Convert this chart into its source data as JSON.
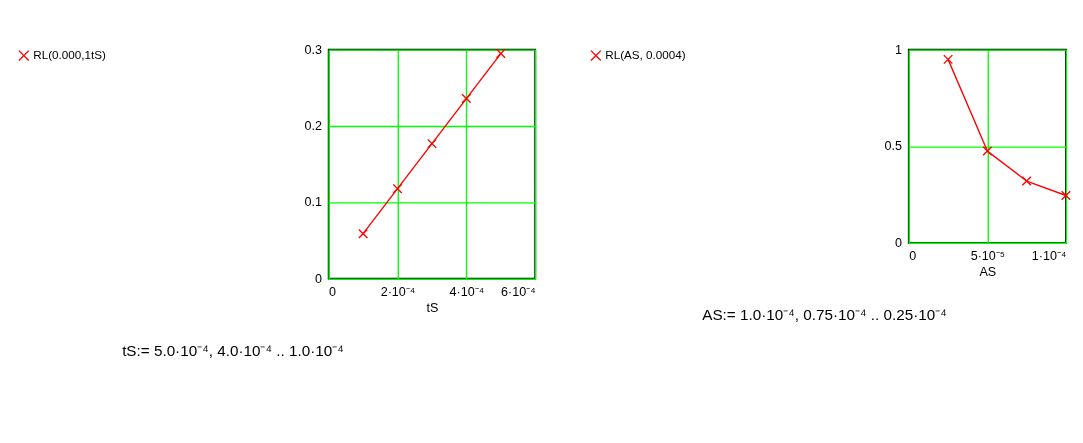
{
  "chart_data": [
    {
      "type": "line",
      "xlabel": "tS",
      "x": [
        0.0001,
        0.0002,
        0.0003,
        0.0004,
        0.0005
      ],
      "series": [
        {
          "name": "RL(0.000,1tS)",
          "color": "#ff0000",
          "values": [
            0.059,
            0.118,
            0.177,
            0.236,
            0.295
          ]
        }
      ],
      "xlim": [
        0,
        0.0006
      ],
      "xticks": [
        0,
        {
          "value": 0.0002,
          "label": "2·10⁻⁴"
        },
        {
          "value": 0.0004,
          "label": "4·10⁻⁴"
        },
        {
          "value": 0.0006,
          "label": "6·10⁻⁴"
        }
      ],
      "ylim": [
        0,
        0.3
      ],
      "yticks": [
        0,
        0.1,
        0.2,
        0.3
      ],
      "grid": true,
      "legend": "left",
      "marker": "cross",
      "line_style": "solid",
      "annotations": [
        "tS:= 5.0·10⁻⁴, 4.0·10⁻⁴ .. 1.0·10⁻⁴"
      ]
    },
    {
      "type": "line",
      "xlabel": "AS",
      "x": [
        2.5e-05,
        5e-05,
        7.5e-05,
        0.0001
      ],
      "series": [
        {
          "name": "RL(AS, 0.0004)",
          "color": "#ff0000",
          "values": [
            0.95,
            0.475,
            0.32,
            0.245
          ]
        }
      ],
      "xlim": [
        0,
        0.0001
      ],
      "xticks": [
        0,
        {
          "value": 5e-05,
          "label": "5·10⁻⁵"
        },
        {
          "value": 0.0001,
          "label": "1·10⁻⁴"
        }
      ],
      "ylim": [
        0,
        1
      ],
      "yticks": [
        0,
        0.5,
        1
      ],
      "grid": true,
      "legend": "left",
      "marker": "cross",
      "line_style": "solid",
      "annotations": [
        "AS:= 1.0·10⁻⁴, 0.75·10⁻⁴ .. 0.25·10⁻⁴"
      ]
    }
  ]
}
